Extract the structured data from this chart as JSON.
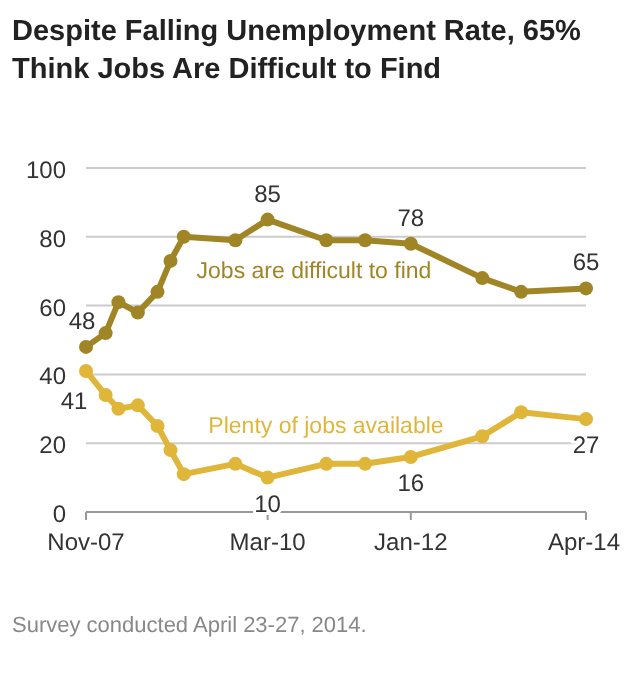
{
  "chart_data": {
    "type": "line",
    "title": "Despite Falling Unemployment Rate, 65% Think Jobs Are Difficult to Find",
    "x": [
      "2007-11",
      "2008-02",
      "2008-04",
      "2008-07",
      "2008-10",
      "2008-12",
      "2009-02",
      "2009-10",
      "2010-03",
      "2010-12",
      "2011-06",
      "2012-01",
      "2012-12",
      "2013-06",
      "2014-04"
    ],
    "series": [
      {
        "name": "Jobs are difficult to find",
        "color": "#a08526",
        "values": [
          48,
          52,
          61,
          58,
          64,
          73,
          80,
          79,
          85,
          79,
          79,
          78,
          68,
          64,
          65
        ],
        "value_labels": [
          "48",
          null,
          null,
          null,
          null,
          null,
          null,
          null,
          "85",
          null,
          null,
          "78",
          null,
          null,
          "65"
        ]
      },
      {
        "name": "Plenty of jobs available",
        "color": "#e0b63a",
        "values": [
          41,
          34,
          30,
          31,
          25,
          18,
          11,
          14,
          10,
          14,
          14,
          16,
          22,
          29,
          27
        ],
        "value_labels": [
          "41",
          null,
          null,
          null,
          null,
          null,
          null,
          null,
          "10",
          null,
          null,
          "16",
          null,
          null,
          "27"
        ]
      }
    ],
    "xlim": [
      "2007-11",
      "2014-04"
    ],
    "xticks": [
      {
        "value": "2007-11",
        "label": "Nov-07"
      },
      {
        "value": "2010-03",
        "label": "Mar-10"
      },
      {
        "value": "2012-01",
        "label": "Jan-12"
      },
      {
        "value": "2014-04",
        "label": "Apr-14"
      }
    ],
    "ylim": [
      0,
      100
    ],
    "yticks": [
      0,
      20,
      40,
      60,
      80,
      100
    ],
    "grid": "y",
    "marker": "circle",
    "line_style": "solid",
    "annotations": [
      "Survey conducted April 23-27, 2014."
    ]
  }
}
